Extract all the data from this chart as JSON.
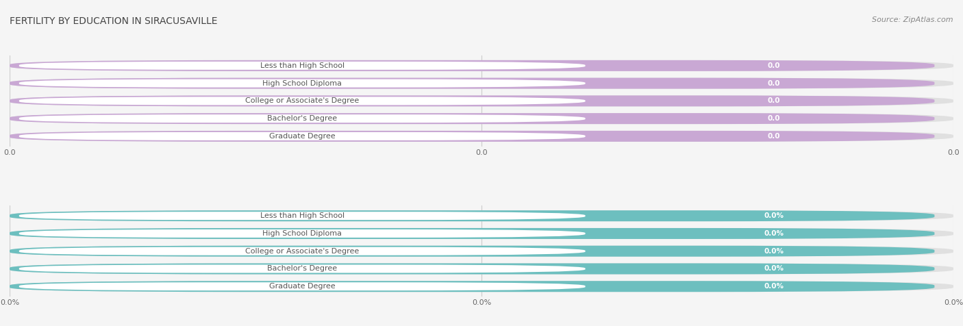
{
  "title": "Fertility by Education in Siracusaville",
  "title_display": "FERTILITY BY EDUCATION IN SIRACUSAVILLE",
  "source": "Source: ZipAtlas.com",
  "categories": [
    "Less than High School",
    "High School Diploma",
    "College or Associate's Degree",
    "Bachelor's Degree",
    "Graduate Degree"
  ],
  "top_values": [
    0.0,
    0.0,
    0.0,
    0.0,
    0.0
  ],
  "bottom_values": [
    0.0,
    0.0,
    0.0,
    0.0,
    0.0
  ],
  "top_color": "#c9a8d4",
  "bottom_color": "#6dbfbf",
  "top_label_suffix": "",
  "bottom_label_suffix": "%",
  "top_tick_labels": [
    "0.0",
    "0.0",
    "0.0"
  ],
  "bottom_tick_labels": [
    "0.0%",
    "0.0%",
    "0.0%"
  ],
  "background_color": "#f5f5f5",
  "bar_bg_color": "#e0e0e0",
  "bar_height": 0.62,
  "title_fontsize": 10,
  "source_fontsize": 8,
  "label_fontsize": 8,
  "value_fontsize": 7.5,
  "tick_fontsize": 8
}
